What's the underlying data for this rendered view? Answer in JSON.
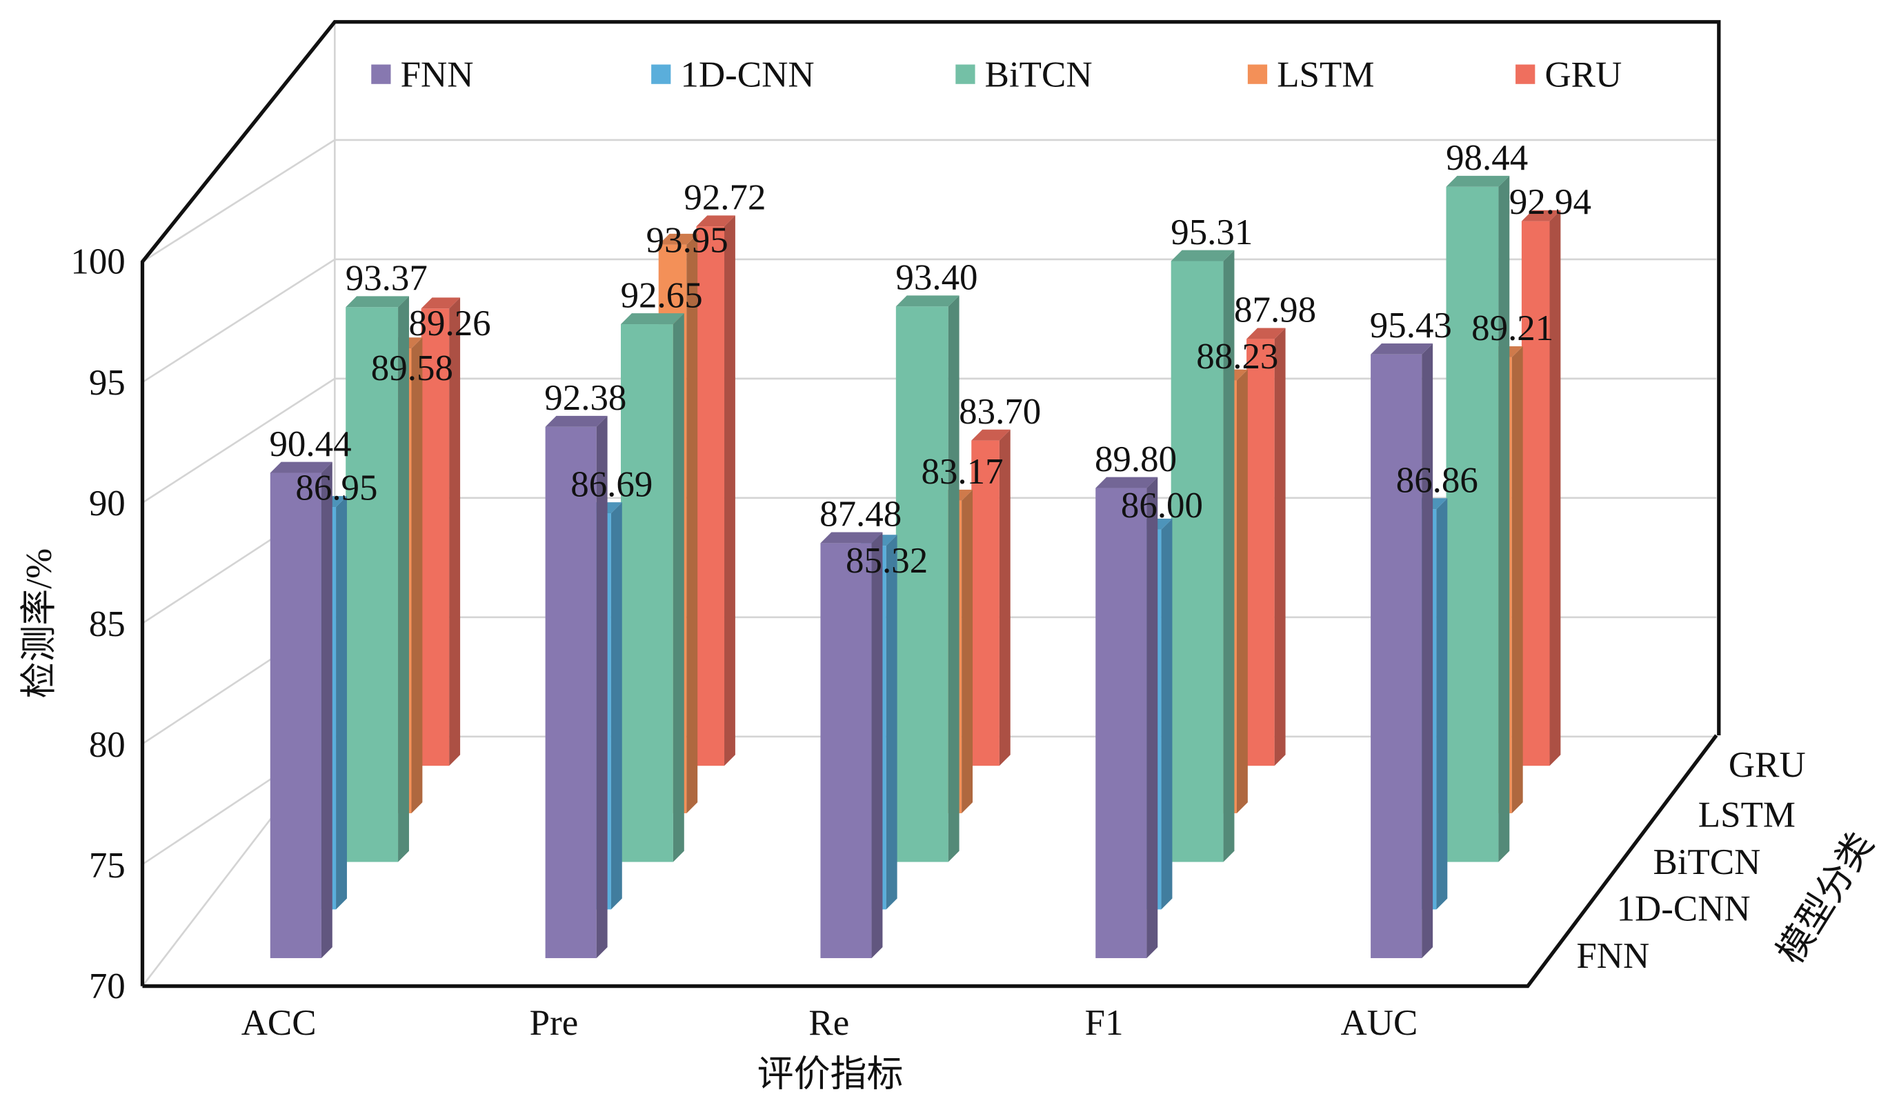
{
  "chart_data": {
    "type": "bar",
    "style": "3d-bar",
    "ylabel": "检测率/%",
    "xlabel": "评价指标",
    "zlabel": "模型分类",
    "ylim": [
      70,
      100
    ],
    "yticks": [
      "70",
      "75",
      "80",
      "85",
      "90",
      "95",
      "100"
    ],
    "categories": [
      "ACC",
      "Pre",
      "Re",
      "F1",
      "AUC"
    ],
    "grid": true,
    "legend_position": "top",
    "series": [
      {
        "name": "FNN",
        "color": "#8778b0",
        "values": [
          90.44,
          92.38,
          87.48,
          89.8,
          95.43
        ],
        "labels": [
          "90.44",
          "92.38",
          "87.48",
          "89.80",
          "95.43"
        ]
      },
      {
        "name": "1D-CNN",
        "color": "#5aaedb",
        "values": [
          86.95,
          86.69,
          85.32,
          86.0,
          86.86
        ],
        "labels": [
          "86.95",
          "86.69",
          "85.32",
          "86.00",
          "86.86"
        ]
      },
      {
        "name": "BiTCN",
        "color": "#74c0a6",
        "values": [
          93.37,
          92.65,
          93.4,
          95.31,
          98.44
        ],
        "labels": [
          "93.37",
          "92.65",
          "93.40",
          "95.31",
          "98.44"
        ]
      },
      {
        "name": "LSTM",
        "color": "#f39058",
        "values": [
          89.58,
          93.95,
          83.17,
          88.23,
          89.21
        ],
        "labels": [
          "89.58",
          "93.95",
          "83.17",
          "88.23",
          "89.21"
        ]
      },
      {
        "name": "GRU",
        "color": "#ef6f5e",
        "values": [
          89.26,
          92.72,
          83.7,
          87.98,
          92.94
        ],
        "labels": [
          "89.26",
          "92.72",
          "83.70",
          "87.98",
          "92.94"
        ]
      }
    ]
  }
}
